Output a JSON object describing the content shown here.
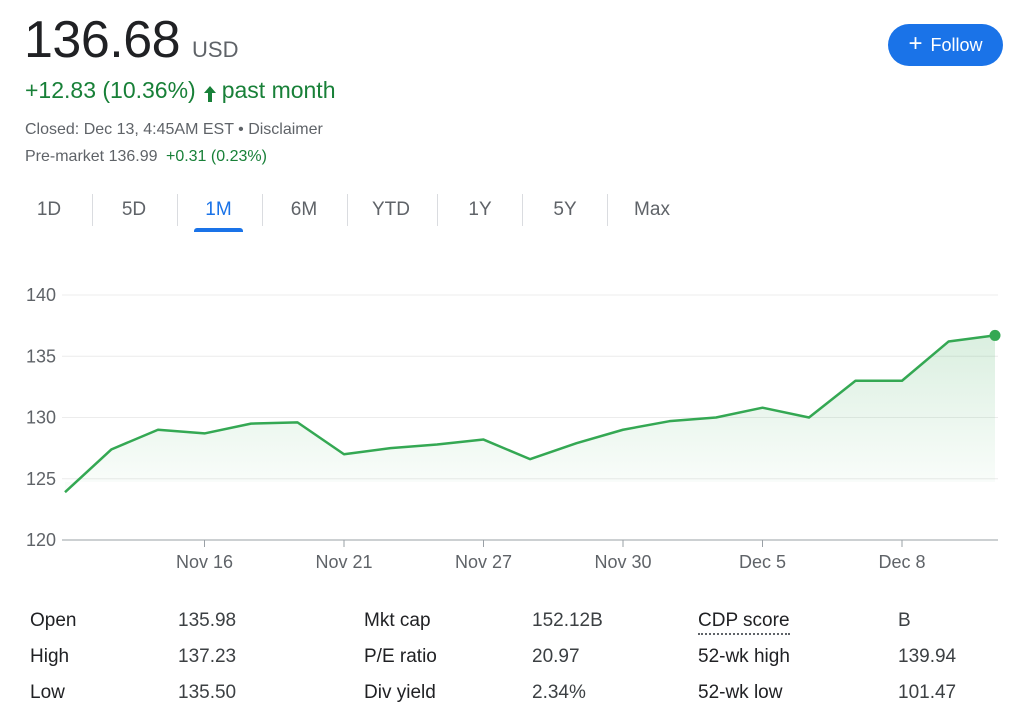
{
  "quote": {
    "price": "136.68",
    "currency": "USD",
    "change": "+12.83 (10.36%)",
    "period": "past month",
    "closed_text": "Closed: Dec 13, 4:45AM EST • Disclaimer",
    "premarket_label": "Pre-market 136.99",
    "premarket_change": "+0.31 (0.23%)"
  },
  "follow_button": {
    "label": "Follow",
    "icon": "plus-icon",
    "color": "#1a73e8"
  },
  "tabs": [
    {
      "label": "1D",
      "active": false
    },
    {
      "label": "5D",
      "active": false
    },
    {
      "label": "1M",
      "active": true
    },
    {
      "label": "6M",
      "active": false
    },
    {
      "label": "YTD",
      "active": false
    },
    {
      "label": "1Y",
      "active": false
    },
    {
      "label": "5Y",
      "active": false
    },
    {
      "label": "Max",
      "active": false
    }
  ],
  "chart_data": {
    "type": "area",
    "title": "",
    "xlabel": "",
    "ylabel": "",
    "ylim": [
      120,
      140
    ],
    "y_ticks": [
      "120",
      "125",
      "130",
      "135",
      "140"
    ],
    "x_ticks": [
      {
        "label": "Nov 16",
        "index": 3
      },
      {
        "label": "Nov 21",
        "index": 6
      },
      {
        "label": "Nov 27",
        "index": 9
      },
      {
        "label": "Nov 30",
        "index": 12
      },
      {
        "label": "Dec 5",
        "index": 15
      },
      {
        "label": "Dec 8",
        "index": 18
      }
    ],
    "series": [
      {
        "values": [
          123.9,
          127.4,
          129.0,
          128.7,
          129.5,
          129.6,
          127.0,
          127.5,
          127.8,
          128.2,
          126.6,
          127.9,
          129.0,
          129.7,
          130.0,
          130.8,
          130.0,
          133.0,
          133.0,
          136.2,
          136.7
        ],
        "color": "#34a853"
      }
    ],
    "grid": true,
    "last_point_marker": true
  },
  "stats": {
    "col1": [
      {
        "label": "Open",
        "value": "135.98"
      },
      {
        "label": "High",
        "value": "137.23"
      },
      {
        "label": "Low",
        "value": "135.50"
      }
    ],
    "col2": [
      {
        "label": "Mkt cap",
        "value": "152.12B"
      },
      {
        "label": "P/E ratio",
        "value": "20.97"
      },
      {
        "label": "Div yield",
        "value": "2.34%"
      }
    ],
    "col3": [
      {
        "label": "CDP score",
        "value": "B"
      },
      {
        "label": "52-wk high",
        "value": "139.94"
      },
      {
        "label": "52-wk low",
        "value": "101.47"
      }
    ]
  },
  "colors": {
    "up": "#188038",
    "accent": "#1a73e8",
    "line": "#34a853"
  }
}
